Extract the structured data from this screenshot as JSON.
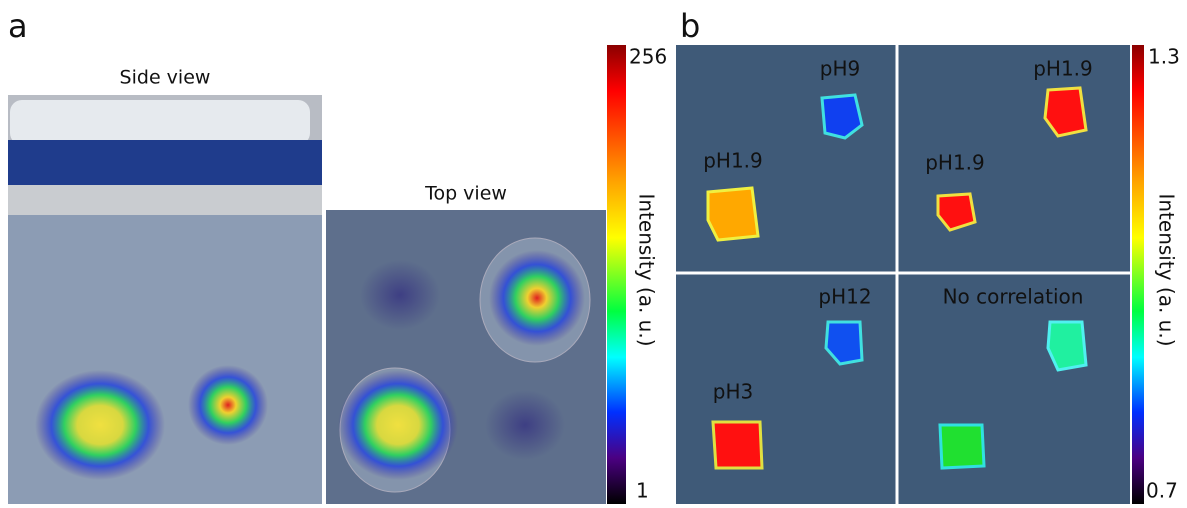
{
  "panel_a": {
    "label": "a",
    "side_view": {
      "title": "Side view"
    },
    "top_view": {
      "title": "Top view"
    },
    "colorbar": {
      "max_label": "256",
      "min_label": "1",
      "label": "Intensity (a. u.)"
    }
  },
  "panel_b": {
    "label": "b",
    "cells": [
      {
        "labels": [
          "pH9",
          "pH1.9"
        ]
      },
      {
        "labels": [
          "pH1.9",
          "pH1.9"
        ]
      },
      {
        "labels": [
          "pH12",
          "pH3"
        ]
      },
      {
        "labels": [
          "No correlation"
        ]
      }
    ],
    "colorbar": {
      "max_label": "1.3",
      "min_label": "0.7",
      "label": "Intensity (a. u.)"
    }
  }
}
